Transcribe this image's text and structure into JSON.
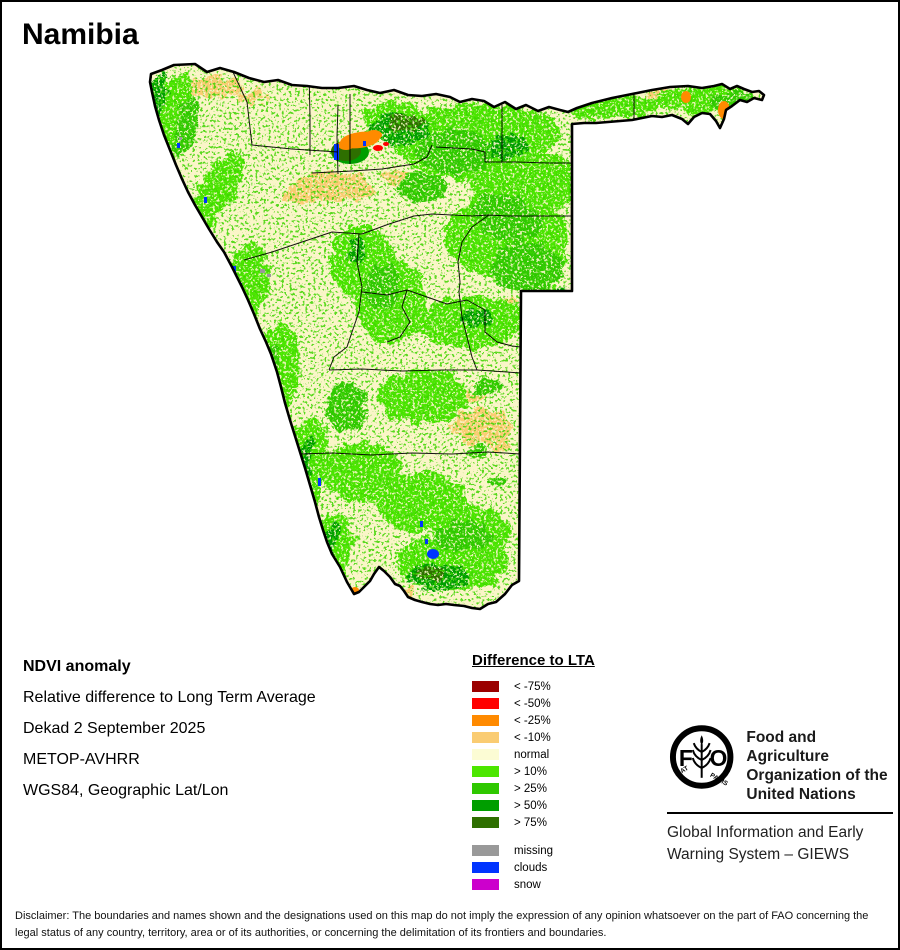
{
  "title": "Namibia",
  "info": {
    "heading": "NDVI anomaly",
    "lines": [
      "Relative difference to Long Term Average",
      "Dekad 2 September 2025",
      "METOP-AVHRR",
      "WGS84, Geographic Lat/Lon"
    ]
  },
  "legend": {
    "title": "Difference to LTA",
    "items": [
      {
        "label": "< -75%",
        "color": "#9B0000"
      },
      {
        "label": "< -50%",
        "color": "#FF0000"
      },
      {
        "label": "< -25%",
        "color": "#FF8A00"
      },
      {
        "label": "< -10%",
        "color": "#FACC72"
      },
      {
        "label": "normal",
        "color": "#FCFCD4"
      },
      {
        "label": "> 10%",
        "color": "#4CE600"
      },
      {
        "label": "> 25%",
        "color": "#2FC800"
      },
      {
        "label": "> 50%",
        "color": "#009E00"
      },
      {
        "label": "> 75%",
        "color": "#2E6F00"
      }
    ],
    "extra_items": [
      {
        "label": "missing",
        "color": "#999999"
      },
      {
        "label": "clouds",
        "color": "#0034FF"
      },
      {
        "label": "snow",
        "color": "#CC00CC"
      }
    ]
  },
  "map": {
    "country": "Namibia",
    "base_color": "#FAF5C8",
    "border_color": "#000000"
  },
  "org": {
    "name": "Food and Agriculture Organization of the United Nations",
    "giews": "Global Information and Early Warning System – GIEWS",
    "logo_motto": [
      "FIAT",
      "PANIS"
    ],
    "logo_letters": [
      "F",
      "O"
    ]
  },
  "disclaimer": "Disclaimer: The boundaries and names shown and the designations used on this map do not imply the expression of any opinion whatsoever on the part of FAO concerning the legal status of any country, territory, area or of its authorities, or concerning the delimitation of its frontiers and boundaries."
}
